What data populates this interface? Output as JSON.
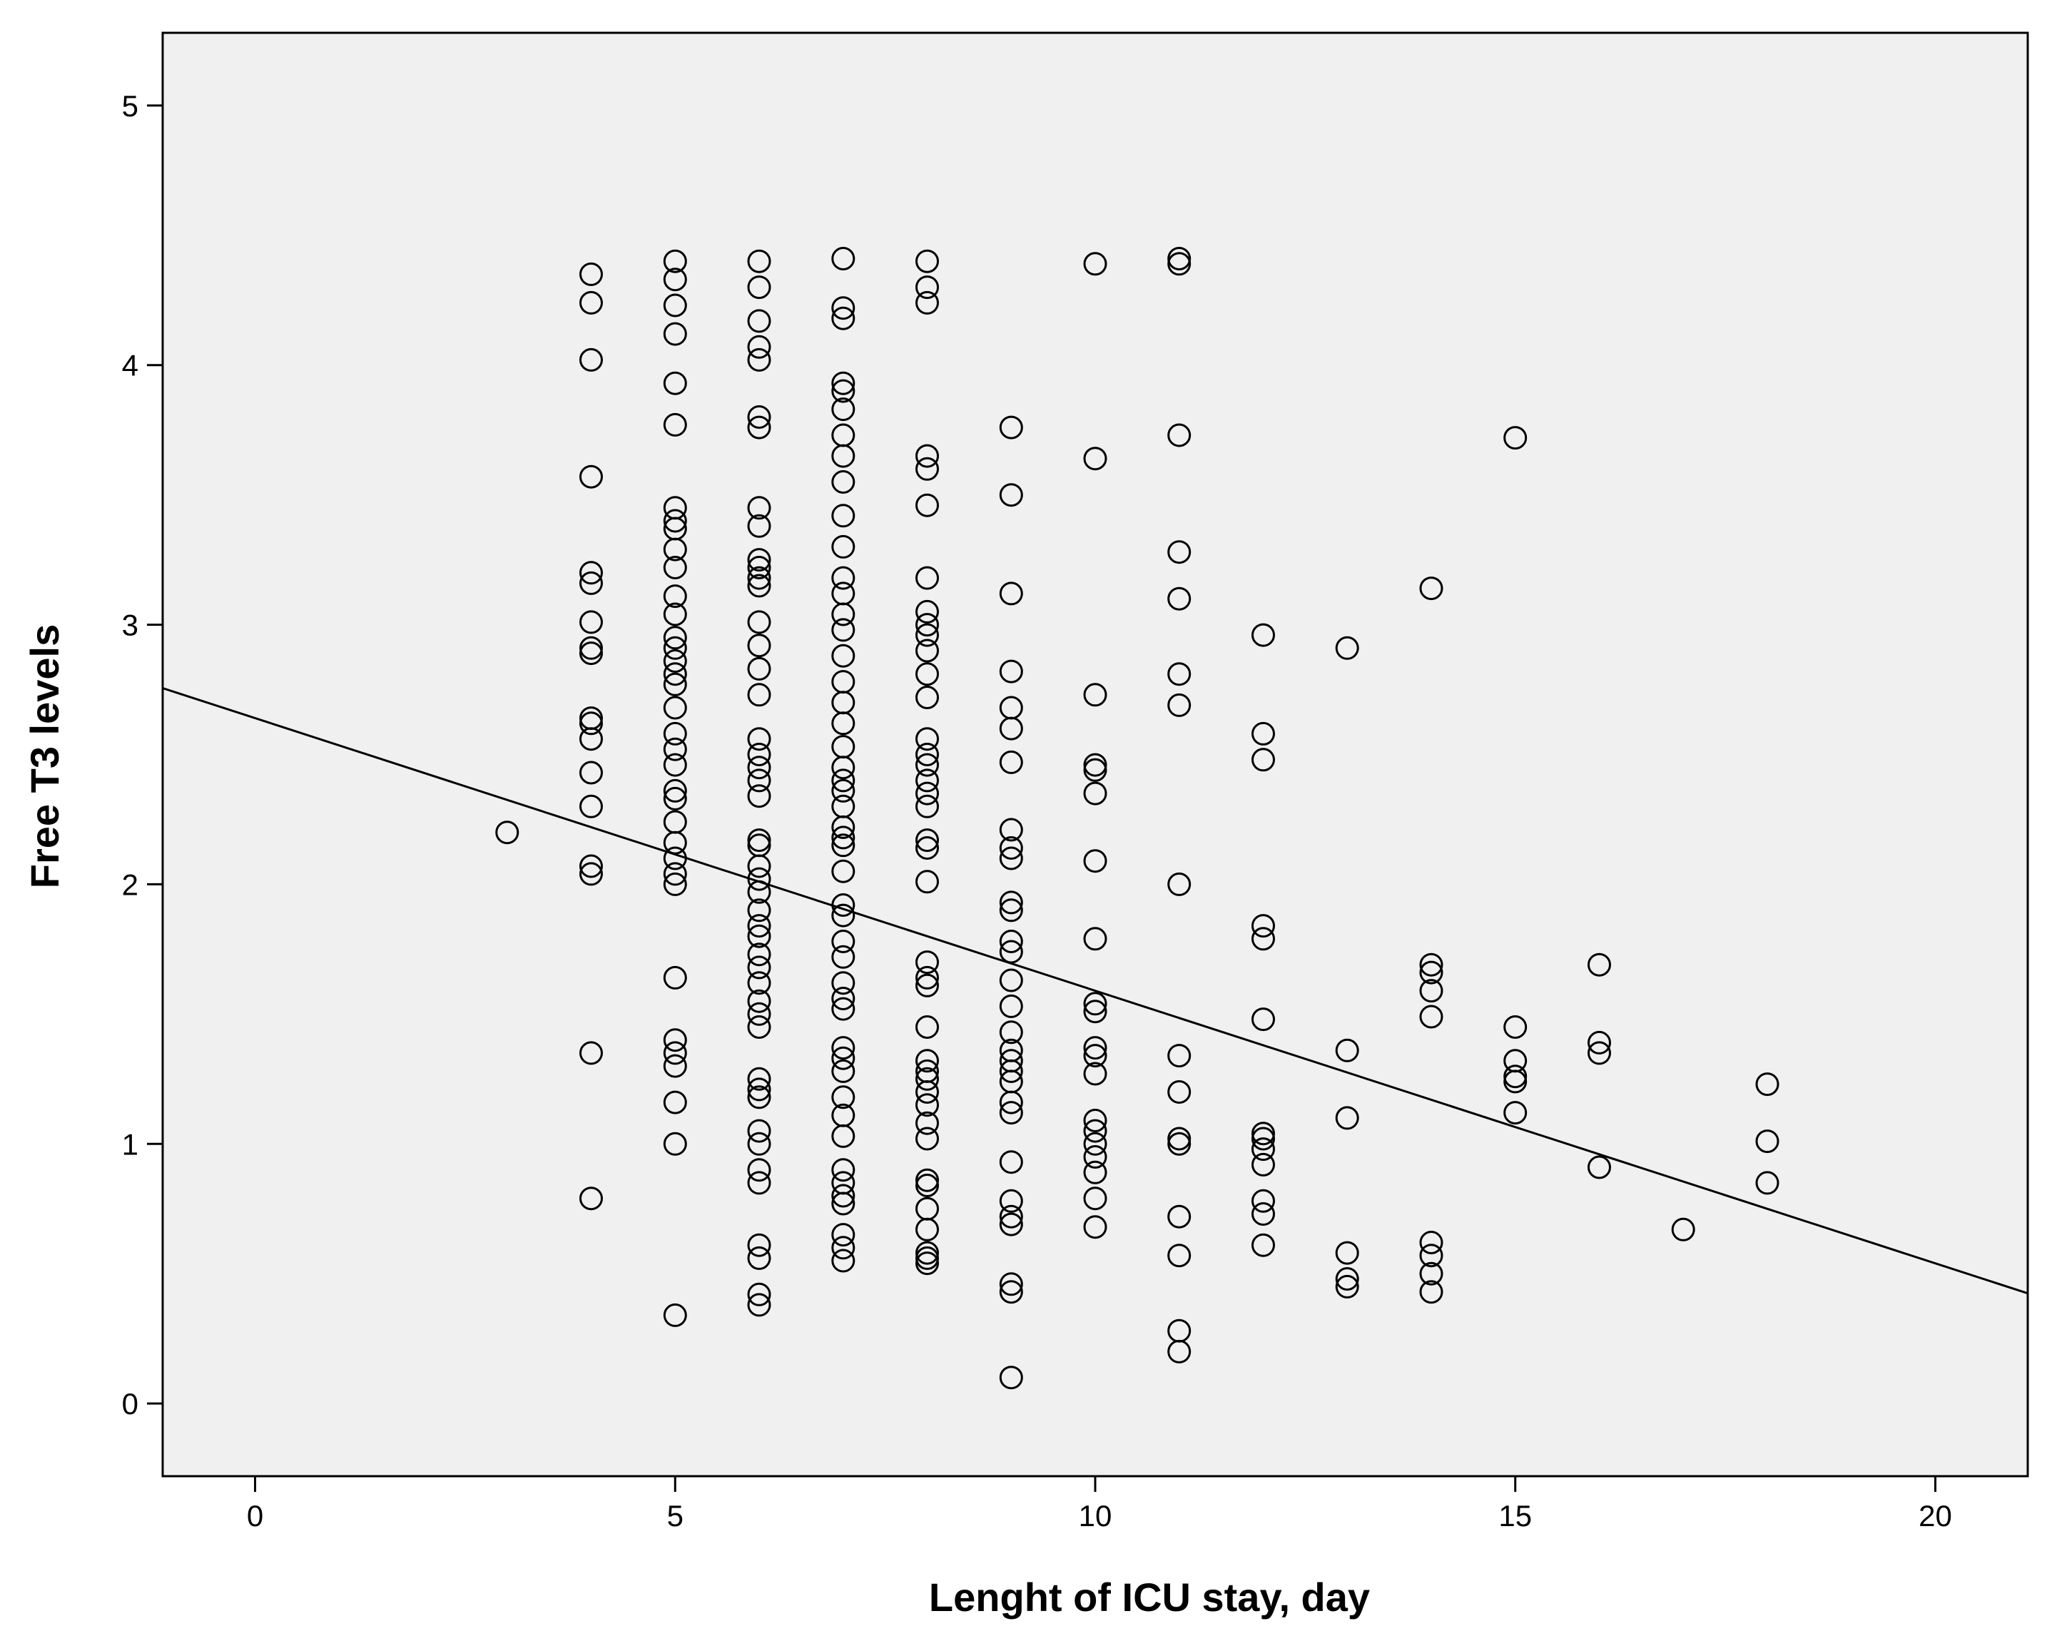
{
  "chart_data": {
    "type": "scatter",
    "title": "",
    "xlabel": "Lenght of ICU stay, day",
    "ylabel": "Free T3 levels",
    "xlim": [
      -1.1,
      21.1
    ],
    "ylim": [
      -0.28,
      5.28
    ],
    "xticks": [
      "0",
      "5",
      "10",
      "15",
      "20"
    ],
    "yticks": [
      "0",
      "1",
      "2",
      "3",
      "4",
      "5"
    ],
    "grid": false,
    "plot_background": "#f0f0f0",
    "marker": "open-circle",
    "fit_line": {
      "intercept": 2.64,
      "slope": -0.105
    },
    "points": [
      [
        3,
        2.2
      ],
      [
        4,
        4.35
      ],
      [
        4,
        4.24
      ],
      [
        4,
        4.02
      ],
      [
        4,
        3.57
      ],
      [
        4,
        3.2
      ],
      [
        4,
        3.16
      ],
      [
        4,
        3.01
      ],
      [
        4,
        2.91
      ],
      [
        4,
        2.89
      ],
      [
        4,
        2.64
      ],
      [
        4,
        2.62
      ],
      [
        4,
        2.56
      ],
      [
        4,
        2.43
      ],
      [
        4,
        2.3
      ],
      [
        4,
        2.07
      ],
      [
        4,
        2.04
      ],
      [
        4,
        1.35
      ],
      [
        4,
        0.79
      ],
      [
        5,
        4.4
      ],
      [
        5,
        4.33
      ],
      [
        5,
        4.23
      ],
      [
        5,
        4.12
      ],
      [
        5,
        3.93
      ],
      [
        5,
        3.77
      ],
      [
        5,
        3.45
      ],
      [
        5,
        3.4
      ],
      [
        5,
        3.37
      ],
      [
        5,
        3.29
      ],
      [
        5,
        3.22
      ],
      [
        5,
        3.11
      ],
      [
        5,
        3.04
      ],
      [
        5,
        2.95
      ],
      [
        5,
        2.91
      ],
      [
        5,
        2.86
      ],
      [
        5,
        2.81
      ],
      [
        5,
        2.77
      ],
      [
        5,
        2.68
      ],
      [
        5,
        2.58
      ],
      [
        5,
        2.52
      ],
      [
        5,
        2.46
      ],
      [
        5,
        2.36
      ],
      [
        5,
        2.33
      ],
      [
        5,
        2.24
      ],
      [
        5,
        2.16
      ],
      [
        5,
        2.1
      ],
      [
        5,
        2.04
      ],
      [
        5,
        2.0
      ],
      [
        5,
        1.64
      ],
      [
        5,
        1.4
      ],
      [
        5,
        1.35
      ],
      [
        5,
        1.3
      ],
      [
        5,
        1.16
      ],
      [
        5,
        1.0
      ],
      [
        5,
        0.34
      ],
      [
        6,
        4.4
      ],
      [
        6,
        4.3
      ],
      [
        6,
        4.17
      ],
      [
        6,
        4.07
      ],
      [
        6,
        4.02
      ],
      [
        6,
        3.8
      ],
      [
        6,
        3.76
      ],
      [
        6,
        3.45
      ],
      [
        6,
        3.38
      ],
      [
        6,
        3.25
      ],
      [
        6,
        3.22
      ],
      [
        6,
        3.18
      ],
      [
        6,
        3.15
      ],
      [
        6,
        3.01
      ],
      [
        6,
        2.92
      ],
      [
        6,
        2.83
      ],
      [
        6,
        2.73
      ],
      [
        6,
        2.56
      ],
      [
        6,
        2.5
      ],
      [
        6,
        2.45
      ],
      [
        6,
        2.4
      ],
      [
        6,
        2.34
      ],
      [
        6,
        2.17
      ],
      [
        6,
        2.15
      ],
      [
        6,
        2.07
      ],
      [
        6,
        2.02
      ],
      [
        6,
        1.97
      ],
      [
        6,
        1.9
      ],
      [
        6,
        1.84
      ],
      [
        6,
        1.8
      ],
      [
        6,
        1.73
      ],
      [
        6,
        1.68
      ],
      [
        6,
        1.62
      ],
      [
        6,
        1.55
      ],
      [
        6,
        1.5
      ],
      [
        6,
        1.45
      ],
      [
        6,
        1.25
      ],
      [
        6,
        1.21
      ],
      [
        6,
        1.18
      ],
      [
        6,
        1.05
      ],
      [
        6,
        1.0
      ],
      [
        6,
        0.9
      ],
      [
        6,
        0.85
      ],
      [
        6,
        0.61
      ],
      [
        6,
        0.56
      ],
      [
        6,
        0.42
      ],
      [
        6,
        0.38
      ],
      [
        7,
        4.41
      ],
      [
        7,
        4.22
      ],
      [
        7,
        4.18
      ],
      [
        7,
        3.93
      ],
      [
        7,
        3.9
      ],
      [
        7,
        3.83
      ],
      [
        7,
        3.73
      ],
      [
        7,
        3.65
      ],
      [
        7,
        3.55
      ],
      [
        7,
        3.42
      ],
      [
        7,
        3.3
      ],
      [
        7,
        3.18
      ],
      [
        7,
        3.12
      ],
      [
        7,
        3.04
      ],
      [
        7,
        2.98
      ],
      [
        7,
        2.88
      ],
      [
        7,
        2.78
      ],
      [
        7,
        2.7
      ],
      [
        7,
        2.62
      ],
      [
        7,
        2.53
      ],
      [
        7,
        2.45
      ],
      [
        7,
        2.4
      ],
      [
        7,
        2.36
      ],
      [
        7,
        2.3
      ],
      [
        7,
        2.22
      ],
      [
        7,
        2.18
      ],
      [
        7,
        2.15
      ],
      [
        7,
        2.05
      ],
      [
        7,
        1.92
      ],
      [
        7,
        1.88
      ],
      [
        7,
        1.78
      ],
      [
        7,
        1.72
      ],
      [
        7,
        1.62
      ],
      [
        7,
        1.56
      ],
      [
        7,
        1.52
      ],
      [
        7,
        1.37
      ],
      [
        7,
        1.33
      ],
      [
        7,
        1.28
      ],
      [
        7,
        1.18
      ],
      [
        7,
        1.11
      ],
      [
        7,
        1.03
      ],
      [
        7,
        0.9
      ],
      [
        7,
        0.85
      ],
      [
        7,
        0.8
      ],
      [
        7,
        0.77
      ],
      [
        7,
        0.65
      ],
      [
        7,
        0.6
      ],
      [
        7,
        0.55
      ],
      [
        8,
        4.4
      ],
      [
        8,
        4.3
      ],
      [
        8,
        4.24
      ],
      [
        8,
        3.65
      ],
      [
        8,
        3.6
      ],
      [
        8,
        3.46
      ],
      [
        8,
        3.18
      ],
      [
        8,
        3.05
      ],
      [
        8,
        3.0
      ],
      [
        8,
        2.96
      ],
      [
        8,
        2.9
      ],
      [
        8,
        2.81
      ],
      [
        8,
        2.72
      ],
      [
        8,
        2.56
      ],
      [
        8,
        2.5
      ],
      [
        8,
        2.46
      ],
      [
        8,
        2.4
      ],
      [
        8,
        2.35
      ],
      [
        8,
        2.3
      ],
      [
        8,
        2.17
      ],
      [
        8,
        2.14
      ],
      [
        8,
        2.01
      ],
      [
        8,
        1.7
      ],
      [
        8,
        1.64
      ],
      [
        8,
        1.61
      ],
      [
        8,
        1.45
      ],
      [
        8,
        1.32
      ],
      [
        8,
        1.28
      ],
      [
        8,
        1.25
      ],
      [
        8,
        1.2
      ],
      [
        8,
        1.15
      ],
      [
        8,
        1.08
      ],
      [
        8,
        1.02
      ],
      [
        8,
        0.86
      ],
      [
        8,
        0.84
      ],
      [
        8,
        0.75
      ],
      [
        8,
        0.67
      ],
      [
        8,
        0.58
      ],
      [
        8,
        0.56
      ],
      [
        8,
        0.54
      ],
      [
        9,
        3.76
      ],
      [
        9,
        3.5
      ],
      [
        9,
        3.12
      ],
      [
        9,
        2.82
      ],
      [
        9,
        2.68
      ],
      [
        9,
        2.6
      ],
      [
        9,
        2.47
      ],
      [
        9,
        2.21
      ],
      [
        9,
        2.14
      ],
      [
        9,
        2.1
      ],
      [
        9,
        1.93
      ],
      [
        9,
        1.9
      ],
      [
        9,
        1.78
      ],
      [
        9,
        1.74
      ],
      [
        9,
        1.63
      ],
      [
        9,
        1.53
      ],
      [
        9,
        1.43
      ],
      [
        9,
        1.36
      ],
      [
        9,
        1.32
      ],
      [
        9,
        1.28
      ],
      [
        9,
        1.24
      ],
      [
        9,
        1.16
      ],
      [
        9,
        1.12
      ],
      [
        9,
        0.93
      ],
      [
        9,
        0.78
      ],
      [
        9,
        0.72
      ],
      [
        9,
        0.69
      ],
      [
        9,
        0.46
      ],
      [
        9,
        0.43
      ],
      [
        9,
        0.1
      ],
      [
        10,
        4.39
      ],
      [
        10,
        3.64
      ],
      [
        10,
        2.73
      ],
      [
        10,
        2.46
      ],
      [
        10,
        2.44
      ],
      [
        10,
        2.35
      ],
      [
        10,
        2.09
      ],
      [
        10,
        1.79
      ],
      [
        10,
        1.54
      ],
      [
        10,
        1.51
      ],
      [
        10,
        1.37
      ],
      [
        10,
        1.34
      ],
      [
        10,
        1.27
      ],
      [
        10,
        1.09
      ],
      [
        10,
        1.05
      ],
      [
        10,
        1.0
      ],
      [
        10,
        0.95
      ],
      [
        10,
        0.89
      ],
      [
        10,
        0.79
      ],
      [
        10,
        0.68
      ],
      [
        11,
        4.41
      ],
      [
        11,
        4.39
      ],
      [
        11,
        3.73
      ],
      [
        11,
        3.28
      ],
      [
        11,
        3.1
      ],
      [
        11,
        2.81
      ],
      [
        11,
        2.69
      ],
      [
        11,
        2.0
      ],
      [
        11,
        1.34
      ],
      [
        11,
        1.2
      ],
      [
        11,
        1.02
      ],
      [
        11,
        1.0
      ],
      [
        11,
        0.72
      ],
      [
        11,
        0.57
      ],
      [
        11,
        0.28
      ],
      [
        11,
        0.2
      ],
      [
        12,
        2.96
      ],
      [
        12,
        2.58
      ],
      [
        12,
        2.48
      ],
      [
        12,
        1.84
      ],
      [
        12,
        1.79
      ],
      [
        12,
        1.48
      ],
      [
        12,
        1.04
      ],
      [
        12,
        1.02
      ],
      [
        12,
        0.98
      ],
      [
        12,
        0.92
      ],
      [
        12,
        0.78
      ],
      [
        12,
        0.73
      ],
      [
        12,
        0.61
      ],
      [
        13,
        2.91
      ],
      [
        13,
        1.36
      ],
      [
        13,
        1.1
      ],
      [
        13,
        0.58
      ],
      [
        13,
        0.48
      ],
      [
        13,
        0.45
      ],
      [
        14,
        3.14
      ],
      [
        14,
        1.69
      ],
      [
        14,
        1.66
      ],
      [
        14,
        1.59
      ],
      [
        14,
        1.49
      ],
      [
        14,
        0.62
      ],
      [
        14,
        0.57
      ],
      [
        14,
        0.5
      ],
      [
        14,
        0.43
      ],
      [
        15,
        3.72
      ],
      [
        15,
        1.45
      ],
      [
        15,
        1.32
      ],
      [
        15,
        1.26
      ],
      [
        15,
        1.24
      ],
      [
        15,
        1.12
      ],
      [
        16,
        1.69
      ],
      [
        16,
        1.39
      ],
      [
        16,
        1.35
      ],
      [
        16,
        0.91
      ],
      [
        17,
        0.67
      ],
      [
        18,
        1.23
      ],
      [
        18,
        1.01
      ],
      [
        18,
        0.85
      ]
    ]
  }
}
